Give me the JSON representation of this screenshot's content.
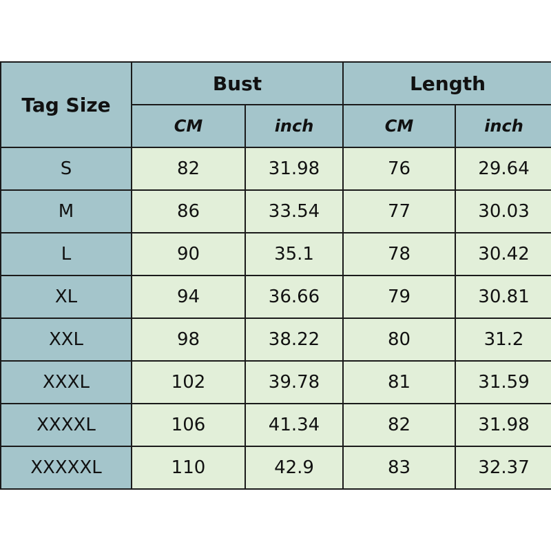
{
  "colors": {
    "header": "#a4c5cb",
    "cell": "#e2efd9",
    "border": "#1a1a1a"
  },
  "headers": {
    "tag_size": "Tag Size",
    "bust": "Bust",
    "length": "Length",
    "bust_cm": "CM",
    "bust_inch": "inch",
    "length_cm": "CM",
    "length_inch": "inch"
  },
  "rows": [
    {
      "size": "S",
      "bust_cm": "82",
      "bust_inch": "31.98",
      "length_cm": "76",
      "length_inch": "29.64"
    },
    {
      "size": "M",
      "bust_cm": "86",
      "bust_inch": "33.54",
      "length_cm": "77",
      "length_inch": "30.03"
    },
    {
      "size": "L",
      "bust_cm": "90",
      "bust_inch": "35.1",
      "length_cm": "78",
      "length_inch": "30.42"
    },
    {
      "size": "XL",
      "bust_cm": "94",
      "bust_inch": "36.66",
      "length_cm": "79",
      "length_inch": "30.81"
    },
    {
      "size": "XXL",
      "bust_cm": "98",
      "bust_inch": "38.22",
      "length_cm": "80",
      "length_inch": "31.2"
    },
    {
      "size": "XXXL",
      "bust_cm": "102",
      "bust_inch": "39.78",
      "length_cm": "81",
      "length_inch": "31.59"
    },
    {
      "size": "XXXXL",
      "bust_cm": "106",
      "bust_inch": "41.34",
      "length_cm": "82",
      "length_inch": "31.98"
    },
    {
      "size": "XXXXXL",
      "bust_cm": "110",
      "bust_inch": "42.9",
      "length_cm": "83",
      "length_inch": "32.37"
    }
  ]
}
